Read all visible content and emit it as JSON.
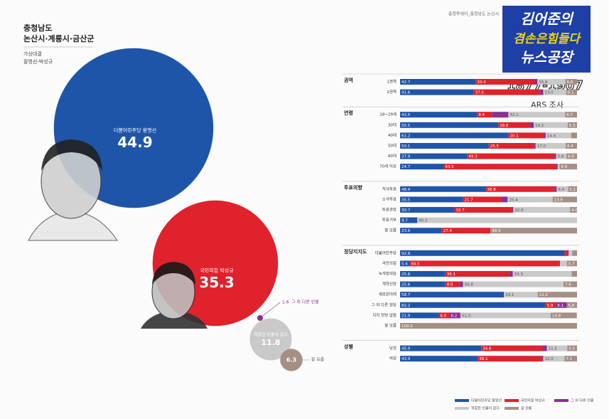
{
  "header": {
    "region": "충청남도",
    "district": "논산시·계룡시·금산군",
    "matchup": "가상대결",
    "candidates": "황명선-박성규",
    "source": "충청투데이_충청남도 논산시"
  },
  "logo": {
    "line1": "김어준의",
    "line2": "겸손은힘들다",
    "line3": "뉴스공장",
    "phone": "1877-1907",
    "method": "ARS 조사"
  },
  "chart_data": [
    {
      "type": "bubble",
      "categories": [
        "더불어민주당 황명선",
        "국민의힘 박성규",
        "그 외 다른 인물",
        "적합한 인물이 없다",
        "잘 모름"
      ],
      "values": [
        44.9,
        35.3,
        1.6,
        11.8,
        6.3
      ],
      "colors": [
        "#1f55a8",
        "#e0222c",
        "#8b2f94",
        "#c9c9c9",
        "#a58f85"
      ]
    },
    {
      "type": "bar",
      "orientation": "horizontal",
      "stacked": true,
      "xlim": [
        0,
        100
      ],
      "groups": [
        "권역",
        null,
        "연령",
        null,
        null,
        null,
        null,
        null,
        "투표의향",
        null,
        null,
        null,
        null,
        "정당지지도",
        null,
        null,
        null,
        null,
        null,
        null,
        null,
        "성별",
        null
      ],
      "categories": [
        "1권역",
        "2권역",
        "18~29세",
        "30대",
        "40대",
        "50대",
        "60대",
        "70세 이상",
        "적극투표",
        "소극투표",
        "투표관망",
        "투표거부",
        "잘 모름",
        "더불어민주당",
        "국민의힘",
        "녹색정의당",
        "개혁신당",
        "새로운미래",
        "그 외 다른 정당",
        "지지 정당 없음",
        "잘 모름",
        "남성",
        "여성"
      ],
      "series": [
        {
          "name": "더불어민주당 황명선",
          "color": "#1f55a8",
          "values": [
            42.7,
            41.6,
            43.5,
            55.5,
            61.2,
            50.1,
            37.9,
            24.7,
            48.4,
            35.5,
            30.7,
            9.7,
            23.6,
            92.8,
            5.4,
            25.6,
            25.6,
            58.7,
            82.2,
            21.9,
            0,
            45.9,
            43.9
          ],
          "value_labels": [
            "42.7",
            "41.6",
            "43.5",
            "55.5",
            "61.2",
            "50.1",
            "37.9",
            "24.7",
            "48.4",
            "35.5",
            "30.7",
            "9.7",
            "23.6",
            "92.8",
            "5.4",
            "25.6",
            "25.6",
            "58.7",
            "82.2",
            "21.9",
            null,
            "45.9",
            "43.9"
          ]
        },
        {
          "name": "국민의힘 박성규",
          "color": "#e0222c",
          "values": [
            33.4,
            37.6,
            8.4,
            18.0,
            20.1,
            25.5,
            49.3,
            63.5,
            38.8,
            21.7,
            32.7,
            0,
            27.4,
            1.5,
            84.5,
            36.1,
            8.0,
            0,
            5.9,
            6.0,
            0,
            34.6,
            36.1
          ],
          "value_labels": [
            "33.4",
            "37.6",
            "8.4",
            "18.0",
            "20.1",
            "25.5",
            "49.3",
            "63.5",
            "38.8",
            "21.7",
            "32.7",
            null,
            "27.4",
            null,
            "84.5",
            "36.1",
            "8.0",
            null,
            "5.9",
            "6.0",
            null,
            "34.6",
            "36.1"
          ]
        },
        {
          "name": "그 외 다른 인물",
          "color": "#8b2f94",
          "values": [
            1.5,
            1.7,
            9.3,
            2.0,
            1.0,
            1.0,
            1.0,
            0.9,
            1.3,
            3.6,
            0.6,
            0,
            0.1,
            1.0,
            0.5,
            2.0,
            2.0,
            0,
            6.1,
            6.2,
            0,
            2.5,
            0.9
          ],
          "value_labels": [
            null,
            null,
            null,
            null,
            null,
            null,
            null,
            null,
            null,
            null,
            null,
            null,
            null,
            null,
            null,
            null,
            null,
            null,
            "6.1",
            "6.2",
            null,
            null,
            null
          ]
        },
        {
          "name": "적합한 인물이 없다",
          "color": "#c9c9c9",
          "values": [
            15.8,
            13.0,
            32.1,
            19.2,
            14.4,
            17.0,
            5.8,
            1.0,
            6.4,
            25.4,
            32.0,
            90.3,
            0,
            2.0,
            3.9,
            33.3,
            56.8,
            19.1,
            0,
            51.0,
            0,
            11.5,
            12.0
          ],
          "value_labels": [
            "15.8",
            "13.0",
            "32.1",
            "19.2",
            "14.4",
            "17.0",
            "5.8",
            null,
            "6.4",
            "25.4",
            "32.0",
            "90.3",
            null,
            null,
            null,
            "33.3",
            "56.8",
            "19.1",
            null,
            "51.0",
            null,
            "11.5",
            "12.0"
          ]
        },
        {
          "name": "잘 모름",
          "color": "#a58f85",
          "values": [
            6.6,
            6.1,
            6.7,
            5.3,
            3.3,
            6.4,
            6.0,
            9.9,
            5.1,
            13.8,
            4.0,
            0,
            48.9,
            2.7,
            5.7,
            3.0,
            7.6,
            22.2,
            5.8,
            14.8,
            100.0,
            5.5,
            7.1
          ],
          "value_labels": [
            "6.6",
            "6.1",
            "6.7",
            "5.3",
            null,
            "6.4",
            "6.0",
            "9.9",
            "5.1",
            "13.8",
            "4.0",
            null,
            "48.9",
            null,
            "5.7",
            null,
            "7.6",
            "22.2",
            "5.8",
            "14.8",
            "100.0",
            "5.5",
            "7.1"
          ]
        }
      ]
    }
  ]
}
